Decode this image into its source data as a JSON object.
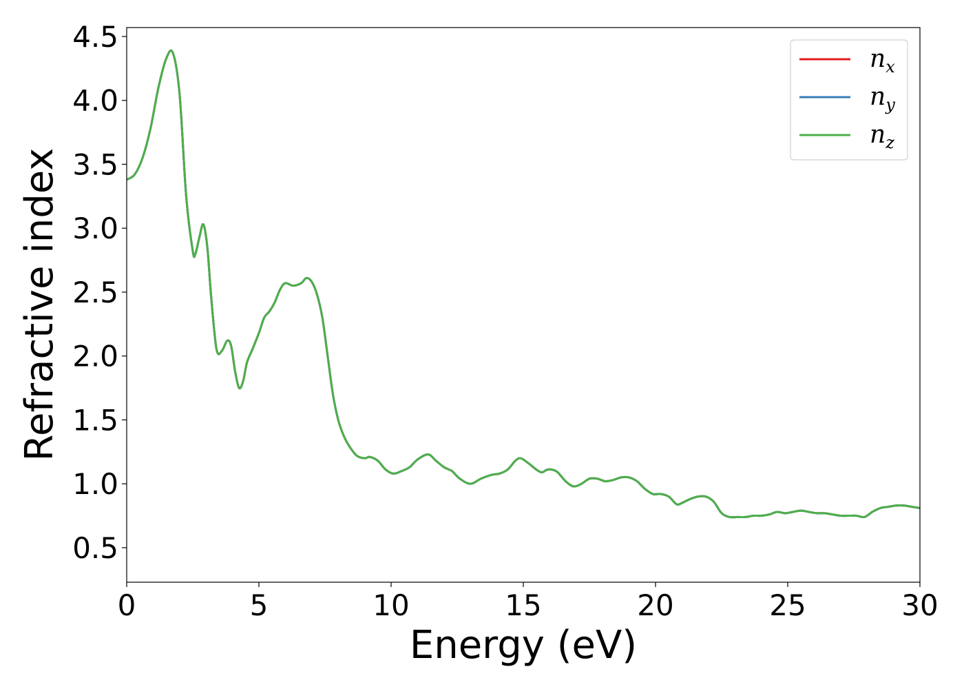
{
  "chart_data": {
    "type": "line",
    "title": "",
    "xlabel": "Energy (eV)",
    "ylabel": "Refractive index",
    "xlim": [
      0,
      30
    ],
    "ylim": [
      0.23,
      4.57
    ],
    "xticks": [
      0,
      5,
      10,
      15,
      20,
      25,
      30
    ],
    "xtick_labels": [
      "0",
      "5",
      "10",
      "15",
      "20",
      "25",
      "30"
    ],
    "yticks": [
      0.5,
      1.0,
      1.5,
      2.0,
      2.5,
      3.0,
      3.5,
      4.0,
      4.5
    ],
    "ytick_labels": [
      "0.5",
      "1.0",
      "1.5",
      "2.0",
      "2.5",
      "3.0",
      "3.5",
      "4.0",
      "4.5"
    ],
    "grid": false,
    "legend_position": "top-right",
    "x": [
      0,
      0.3,
      0.6,
      0.9,
      1.2,
      1.5,
      1.75,
      2.0,
      2.25,
      2.5,
      2.6,
      2.75,
      2.9,
      3.05,
      3.2,
      3.4,
      3.6,
      3.8,
      3.95,
      4.1,
      4.25,
      4.4,
      4.55,
      4.75,
      5.0,
      5.2,
      5.4,
      5.6,
      5.8,
      6.0,
      6.3,
      6.6,
      6.8,
      7.0,
      7.2,
      7.4,
      7.6,
      7.8,
      8.0,
      8.2,
      8.4,
      8.7,
      9.0,
      9.2,
      9.5,
      9.8,
      10.1,
      10.4,
      10.7,
      11.0,
      11.4,
      11.7,
      12.0,
      12.3,
      12.6,
      13.0,
      13.4,
      13.8,
      14.1,
      14.4,
      14.7,
      14.9,
      15.2,
      15.5,
      15.7,
      15.9,
      16.1,
      16.3,
      16.6,
      16.9,
      17.2,
      17.5,
      17.8,
      18.1,
      18.4,
      18.7,
      19.0,
      19.3,
      19.6,
      19.9,
      20.2,
      20.5,
      20.8,
      21.0,
      21.3,
      21.6,
      21.9,
      22.2,
      22.5,
      22.8,
      23.1,
      23.4,
      23.7,
      24.0,
      24.3,
      24.6,
      24.9,
      25.2,
      25.5,
      25.8,
      26.1,
      26.4,
      26.7,
      27.0,
      27.3,
      27.6,
      27.9,
      28.2,
      28.5,
      28.8,
      29.1,
      29.4,
      29.7,
      30.0
    ],
    "series": [
      {
        "name": "n_x",
        "name_base": "n",
        "name_sub": "x",
        "color": "#e41a1c",
        "values": [
          3.38,
          3.42,
          3.55,
          3.78,
          4.1,
          4.33,
          4.37,
          4.05,
          3.25,
          2.82,
          2.8,
          2.93,
          3.03,
          2.85,
          2.45,
          2.05,
          2.04,
          2.12,
          2.08,
          1.88,
          1.75,
          1.8,
          1.95,
          2.05,
          2.18,
          2.3,
          2.35,
          2.42,
          2.52,
          2.57,
          2.55,
          2.57,
          2.61,
          2.58,
          2.48,
          2.3,
          2.0,
          1.7,
          1.5,
          1.38,
          1.3,
          1.22,
          1.2,
          1.21,
          1.18,
          1.11,
          1.08,
          1.1,
          1.13,
          1.19,
          1.23,
          1.18,
          1.13,
          1.1,
          1.04,
          1.0,
          1.04,
          1.07,
          1.08,
          1.11,
          1.18,
          1.2,
          1.16,
          1.11,
          1.09,
          1.11,
          1.11,
          1.09,
          1.02,
          0.98,
          1.0,
          1.04,
          1.04,
          1.02,
          1.03,
          1.05,
          1.05,
          1.02,
          0.96,
          0.92,
          0.92,
          0.9,
          0.84,
          0.85,
          0.88,
          0.9,
          0.9,
          0.86,
          0.77,
          0.74,
          0.74,
          0.74,
          0.75,
          0.75,
          0.76,
          0.78,
          0.77,
          0.78,
          0.79,
          0.78,
          0.77,
          0.77,
          0.76,
          0.75,
          0.75,
          0.75,
          0.74,
          0.78,
          0.81,
          0.82,
          0.83,
          0.83,
          0.82,
          0.81
        ]
      },
      {
        "name": "n_y",
        "name_base": "n",
        "name_sub": "y",
        "color": "#377eb8",
        "values": [
          3.38,
          3.42,
          3.55,
          3.78,
          4.1,
          4.33,
          4.37,
          4.05,
          3.25,
          2.82,
          2.8,
          2.93,
          3.03,
          2.85,
          2.45,
          2.05,
          2.04,
          2.12,
          2.08,
          1.88,
          1.75,
          1.8,
          1.95,
          2.05,
          2.18,
          2.3,
          2.35,
          2.42,
          2.52,
          2.57,
          2.55,
          2.57,
          2.61,
          2.58,
          2.48,
          2.3,
          2.0,
          1.7,
          1.5,
          1.38,
          1.3,
          1.22,
          1.2,
          1.21,
          1.18,
          1.11,
          1.08,
          1.1,
          1.13,
          1.19,
          1.23,
          1.18,
          1.13,
          1.1,
          1.04,
          1.0,
          1.04,
          1.07,
          1.08,
          1.11,
          1.18,
          1.2,
          1.16,
          1.11,
          1.09,
          1.11,
          1.11,
          1.09,
          1.02,
          0.98,
          1.0,
          1.04,
          1.04,
          1.02,
          1.03,
          1.05,
          1.05,
          1.02,
          0.96,
          0.92,
          0.92,
          0.9,
          0.84,
          0.85,
          0.88,
          0.9,
          0.9,
          0.86,
          0.77,
          0.74,
          0.74,
          0.74,
          0.75,
          0.75,
          0.76,
          0.78,
          0.77,
          0.78,
          0.79,
          0.78,
          0.77,
          0.77,
          0.76,
          0.75,
          0.75,
          0.75,
          0.74,
          0.78,
          0.81,
          0.82,
          0.83,
          0.83,
          0.82,
          0.81
        ]
      },
      {
        "name": "n_z",
        "name_base": "n",
        "name_sub": "z",
        "color": "#4daf4a",
        "values": [
          3.38,
          3.42,
          3.55,
          3.78,
          4.1,
          4.33,
          4.37,
          4.05,
          3.25,
          2.82,
          2.8,
          2.93,
          3.03,
          2.85,
          2.45,
          2.05,
          2.04,
          2.12,
          2.08,
          1.88,
          1.75,
          1.8,
          1.95,
          2.05,
          2.18,
          2.3,
          2.35,
          2.42,
          2.52,
          2.57,
          2.55,
          2.57,
          2.61,
          2.58,
          2.48,
          2.3,
          2.0,
          1.7,
          1.5,
          1.38,
          1.3,
          1.22,
          1.2,
          1.21,
          1.18,
          1.11,
          1.08,
          1.1,
          1.13,
          1.19,
          1.23,
          1.18,
          1.13,
          1.1,
          1.04,
          1.0,
          1.04,
          1.07,
          1.08,
          1.11,
          1.18,
          1.2,
          1.16,
          1.11,
          1.09,
          1.11,
          1.11,
          1.09,
          1.02,
          0.98,
          1.0,
          1.04,
          1.04,
          1.02,
          1.03,
          1.05,
          1.05,
          1.02,
          0.96,
          0.92,
          0.92,
          0.9,
          0.84,
          0.85,
          0.88,
          0.9,
          0.9,
          0.86,
          0.77,
          0.74,
          0.74,
          0.74,
          0.75,
          0.75,
          0.76,
          0.78,
          0.77,
          0.78,
          0.79,
          0.78,
          0.77,
          0.77,
          0.76,
          0.75,
          0.75,
          0.75,
          0.74,
          0.78,
          0.81,
          0.82,
          0.83,
          0.83,
          0.82,
          0.81
        ]
      }
    ]
  }
}
